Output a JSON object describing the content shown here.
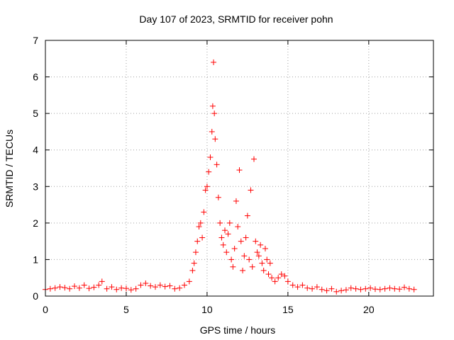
{
  "chart_data": {
    "type": "scatter",
    "title": "Day 107 of 2023, SRMTID for receiver pohn",
    "xlabel": "GPS time / hours",
    "ylabel": "SRMTID / TECUs",
    "xlim": [
      0,
      24
    ],
    "ylim": [
      0,
      7
    ],
    "x_ticks": [
      0,
      5,
      10,
      15,
      20
    ],
    "x_tick_labels": [
      "0",
      "5",
      "10",
      "15",
      "20"
    ],
    "y_ticks": [
      0,
      1,
      2,
      3,
      4,
      5,
      6,
      7
    ],
    "y_tick_labels": [
      "0",
      "1",
      "2",
      "3",
      "4",
      "5",
      "6",
      "7"
    ],
    "grid": true,
    "marker": "plus",
    "color": "#ff0000",
    "series": [
      {
        "name": "SRMTID",
        "x": [
          0.0,
          0.3,
          0.6,
          0.9,
          1.2,
          1.5,
          1.8,
          2.1,
          2.4,
          2.7,
          3.0,
          3.3,
          3.5,
          3.8,
          4.1,
          4.4,
          4.7,
          5.0,
          5.3,
          5.6,
          5.9,
          6.2,
          6.5,
          6.8,
          7.1,
          7.4,
          7.7,
          8.0,
          8.3,
          8.6,
          8.9,
          9.1,
          9.2,
          9.3,
          9.4,
          9.5,
          9.6,
          9.7,
          9.8,
          9.9,
          10.0,
          10.1,
          10.2,
          10.3,
          10.35,
          10.4,
          10.45,
          10.5,
          10.6,
          10.7,
          10.8,
          10.9,
          11.0,
          11.1,
          11.2,
          11.3,
          11.4,
          11.5,
          11.6,
          11.7,
          11.8,
          11.9,
          12.0,
          12.1,
          12.2,
          12.3,
          12.4,
          12.5,
          12.6,
          12.7,
          12.8,
          12.9,
          13.0,
          13.1,
          13.2,
          13.3,
          13.4,
          13.5,
          13.6,
          13.7,
          13.8,
          13.9,
          14.0,
          14.2,
          14.4,
          14.6,
          14.8,
          15.0,
          15.3,
          15.6,
          15.9,
          16.2,
          16.5,
          16.8,
          17.1,
          17.4,
          17.7,
          18.0,
          18.3,
          18.6,
          18.9,
          19.2,
          19.5,
          19.8,
          20.1,
          20.4,
          20.7,
          21.0,
          21.3,
          21.6,
          21.9,
          22.2,
          22.5,
          22.8
        ],
        "y": [
          0.18,
          0.2,
          0.22,
          0.25,
          0.23,
          0.2,
          0.27,
          0.22,
          0.3,
          0.21,
          0.24,
          0.3,
          0.4,
          0.2,
          0.25,
          0.18,
          0.22,
          0.21,
          0.17,
          0.2,
          0.3,
          0.35,
          0.28,
          0.25,
          0.3,
          0.26,
          0.28,
          0.2,
          0.22,
          0.3,
          0.4,
          0.7,
          0.9,
          1.2,
          1.5,
          1.9,
          2.0,
          1.6,
          2.3,
          2.9,
          3.0,
          3.4,
          3.8,
          4.5,
          5.2,
          6.4,
          5.0,
          4.3,
          3.6,
          2.7,
          2.0,
          1.6,
          1.4,
          1.8,
          1.2,
          1.7,
          2.0,
          1.0,
          0.8,
          1.3,
          2.6,
          1.9,
          3.45,
          1.5,
          0.7,
          1.1,
          1.6,
          2.2,
          1.0,
          2.9,
          0.8,
          3.75,
          1.5,
          1.2,
          1.1,
          1.4,
          0.9,
          0.7,
          1.3,
          1.0,
          0.6,
          0.9,
          0.5,
          0.4,
          0.5,
          0.6,
          0.55,
          0.4,
          0.3,
          0.25,
          0.3,
          0.22,
          0.2,
          0.25,
          0.18,
          0.15,
          0.2,
          0.12,
          0.15,
          0.17,
          0.22,
          0.2,
          0.18,
          0.2,
          0.22,
          0.19,
          0.18,
          0.2,
          0.22,
          0.2,
          0.19,
          0.24,
          0.2,
          0.18
        ]
      }
    ]
  }
}
